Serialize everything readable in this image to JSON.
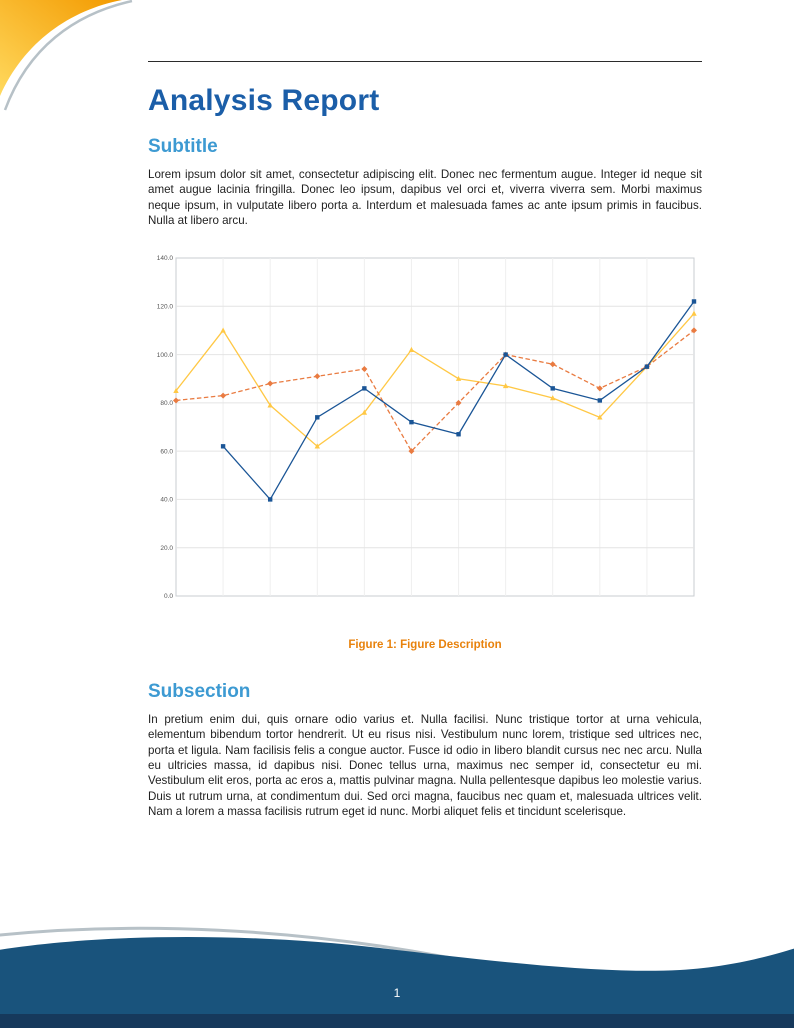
{
  "page": {
    "title": "Analysis Report",
    "number": "1"
  },
  "sections": [
    {
      "heading": "Subtitle",
      "body": "Lorem ipsum dolor sit amet, consectetur adipiscing elit. Donec nec fermentum augue. Integer id neque sit amet augue lacinia fringilla. Donec leo ipsum, dapibus vel orci et, viverra viverra sem. Morbi maximus neque ipsum, in vulputate libero porta a. Interdum et malesuada fames ac ante ipsum primis in faucibus. Nulla at libero arcu."
    },
    {
      "heading": "Subsection",
      "body": "In pretium enim dui, quis ornare odio varius et. Nulla facilisi. Nunc tristique tortor at urna vehicula, elementum bibendum tortor hendrerit. Ut eu risus nisi. Vestibulum nunc lorem, tristique sed ultrices nec, porta et ligula. Nam facilisis felis a congue auctor. Fusce id odio in libero blandit cursus nec nec arcu. Nulla eu ultricies massa, id dapibus nisi. Donec tellus urna, maximus nec semper id, consectetur eu mi. Vestibulum elit eros, porta ac eros a, mattis pulvinar magna. Nulla pellentesque dapibus leo molestie varius. Duis ut rutrum urna, at condimentum dui. Sed orci magna, faucibus nec quam et, malesuada ultrices velit. Nam a lorem a massa facilisis rutrum eget id nunc. Morbi aliquet felis et tincidunt scelerisque."
    }
  ],
  "figure": {
    "caption_label": "Figure 1:",
    "caption_text": "Figure Description"
  },
  "chart_data": {
    "type": "line",
    "title": "",
    "xlabel": "",
    "ylabel": "",
    "ylim": [
      0,
      140
    ],
    "xmax": 11,
    "grid": true,
    "legend": "none",
    "yticks": [
      0,
      20,
      40,
      60,
      80,
      100,
      120,
      140
    ],
    "ytick_labels": [
      "0.0",
      "20.0",
      "40.0",
      "60.0",
      "80.0",
      "100.0",
      "120.0",
      "140.0"
    ],
    "series": [
      {
        "name": "gold-solid",
        "color": "#FFC845",
        "style": "solid",
        "marker": "triangle",
        "x": [
          0,
          1,
          2,
          3,
          4,
          5,
          6,
          7,
          8,
          9,
          10,
          11
        ],
        "values": [
          85,
          110,
          79,
          62,
          76,
          102,
          90,
          87,
          82,
          74,
          95,
          117
        ]
      },
      {
        "name": "orange-dashed",
        "color": "#E97B41",
        "style": "dashed",
        "marker": "diamond",
        "x": [
          0,
          1,
          2,
          3,
          4,
          5,
          6,
          7,
          8,
          9,
          10,
          11
        ],
        "values": [
          81,
          83,
          88,
          91,
          94,
          60,
          80,
          100,
          96,
          86,
          95,
          110
        ]
      },
      {
        "name": "navy-solid",
        "color": "#1A5596",
        "style": "solid",
        "marker": "square",
        "x": [
          1,
          2,
          3,
          4,
          5,
          6,
          7,
          8,
          9,
          10,
          11
        ],
        "values": [
          62,
          40,
          74,
          86,
          72,
          67,
          100,
          86,
          81,
          95,
          122
        ]
      }
    ]
  },
  "colors": {
    "title_color": "#1B5EA8",
    "heading_color": "#3D9AD2",
    "caption_color": "#E8820C",
    "body_text": "#1F1F1F",
    "rule_color": "#2B2B2B",
    "footer_wave": "#19537C",
    "footer_dark": "#16395C",
    "decoration_yellow": "#FFD95E",
    "decoration_orange": "#F39A00",
    "decoration_gray": "#B7C1C7"
  }
}
